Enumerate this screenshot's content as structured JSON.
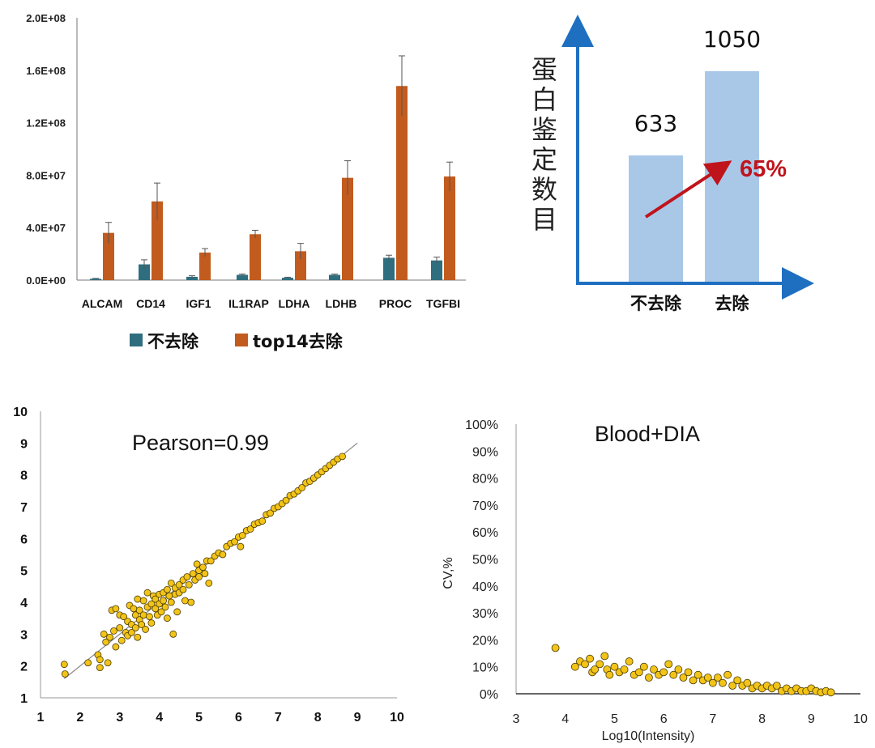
{
  "chart_data": [
    {
      "type": "bar",
      "categories": [
        "ALCAM",
        "CD14",
        "IGF1",
        "IL1RAP",
        "LDHA",
        "LDHB",
        "PROC",
        "TGFBI"
      ],
      "series": [
        {
          "name": "不去除",
          "color": "#2E6E7E",
          "values": [
            1000000.0,
            12000000.0,
            2500000.0,
            4000000.0,
            1800000.0,
            4000000.0,
            17000000.0,
            15000000.0
          ],
          "errors": [
            300000.0,
            3500000.0,
            800000.0,
            600000.0,
            400000.0,
            600000.0,
            2000000.0,
            2500000.0
          ]
        },
        {
          "name": "top14去除",
          "color": "#C25B1E",
          "values": [
            36000000.0,
            60000000.0,
            21000000.0,
            35000000.0,
            22000000.0,
            78000000.0,
            148000000.0,
            79000000.0
          ],
          "errors": [
            8000000.0,
            14000000.0,
            3000000.0,
            3000000.0,
            6000000.0,
            13000000.0,
            23000000.0,
            11000000.0
          ]
        }
      ],
      "ytick_labels": [
        "0.0E+00",
        "4.0E+07",
        "8.0E+07",
        "1.2E+08",
        "1.6E+08",
        "2.0E+08"
      ],
      "ylim": [
        0,
        200000000
      ],
      "legend_position": "bottom"
    },
    {
      "type": "bar",
      "categories": [
        "不去除",
        "去除"
      ],
      "values": [
        633,
        1050
      ],
      "value_labels": [
        "633",
        "1050"
      ],
      "ylabel": "蛋白鉴定数目",
      "annotation": "65%",
      "bar_color": "#A9C8E8",
      "axis_color": "#1F6FC1",
      "arrow_color": "#C0141C"
    },
    {
      "type": "scatter",
      "title": "Pearson=0.99",
      "xlim": [
        1,
        10
      ],
      "ylim": [
        1,
        10
      ],
      "xticks": [
        "1",
        "2",
        "3",
        "4",
        "5",
        "6",
        "7",
        "8",
        "9",
        "10"
      ],
      "yticks": [
        "1",
        "2",
        "3",
        "4",
        "5",
        "6",
        "7",
        "8",
        "9",
        "10"
      ],
      "fit_line": [
        [
          1.6,
          1.6
        ],
        [
          9.0,
          9.0
        ]
      ],
      "point_color": "#F2C418",
      "points": [
        [
          1.6,
          2.05
        ],
        [
          1.62,
          1.75
        ],
        [
          2.2,
          2.1
        ],
        [
          2.45,
          2.35
        ],
        [
          2.5,
          2.2
        ],
        [
          2.5,
          1.95
        ],
        [
          2.7,
          2.1
        ],
        [
          2.6,
          3.0
        ],
        [
          2.65,
          2.75
        ],
        [
          2.75,
          2.9
        ],
        [
          2.85,
          3.1
        ],
        [
          2.9,
          2.6
        ],
        [
          2.8,
          3.75
        ],
        [
          2.9,
          3.8
        ],
        [
          3.0,
          3.6
        ],
        [
          3.0,
          3.2
        ],
        [
          3.05,
          2.8
        ],
        [
          3.1,
          3.55
        ],
        [
          3.15,
          3.05
        ],
        [
          3.2,
          3.4
        ],
        [
          3.2,
          2.95
        ],
        [
          3.25,
          3.9
        ],
        [
          3.3,
          3.3
        ],
        [
          3.3,
          3.05
        ],
        [
          3.35,
          3.8
        ],
        [
          3.4,
          3.6
        ],
        [
          3.4,
          3.2
        ],
        [
          3.45,
          4.1
        ],
        [
          3.45,
          2.9
        ],
        [
          3.5,
          3.45
        ],
        [
          3.5,
          3.75
        ],
        [
          3.55,
          3.3
        ],
        [
          3.6,
          4.05
        ],
        [
          3.6,
          3.6
        ],
        [
          3.65,
          3.15
        ],
        [
          3.7,
          3.85
        ],
        [
          3.7,
          4.3
        ],
        [
          3.75,
          3.55
        ],
        [
          3.8,
          3.95
        ],
        [
          3.8,
          3.35
        ],
        [
          3.85,
          4.2
        ],
        [
          3.9,
          3.8
        ],
        [
          3.9,
          4.1
        ],
        [
          3.95,
          3.6
        ],
        [
          4.0,
          4.25
        ],
        [
          4.0,
          3.95
        ],
        [
          4.05,
          3.7
        ],
        [
          4.1,
          4.3
        ],
        [
          4.1,
          4.05
        ],
        [
          4.15,
          3.85
        ],
        [
          4.2,
          4.4
        ],
        [
          4.2,
          3.5
        ],
        [
          4.25,
          4.2
        ],
        [
          4.3,
          4.6
        ],
        [
          4.3,
          4.0
        ],
        [
          4.35,
          3.0
        ],
        [
          4.4,
          4.45
        ],
        [
          4.4,
          4.25
        ],
        [
          4.45,
          3.7
        ],
        [
          4.5,
          4.55
        ],
        [
          4.5,
          4.3
        ],
        [
          4.6,
          4.7
        ],
        [
          4.6,
          4.4
        ],
        [
          4.65,
          4.05
        ],
        [
          4.7,
          4.8
        ],
        [
          4.75,
          4.55
        ],
        [
          4.8,
          4.0
        ],
        [
          4.85,
          4.9
        ],
        [
          4.9,
          4.7
        ],
        [
          4.95,
          5.2
        ],
        [
          5.0,
          5.0
        ],
        [
          5.0,
          4.8
        ],
        [
          5.1,
          5.1
        ],
        [
          5.15,
          4.9
        ],
        [
          5.2,
          5.3
        ],
        [
          5.25,
          4.6
        ],
        [
          5.3,
          5.3
        ],
        [
          5.4,
          5.45
        ],
        [
          5.5,
          5.55
        ],
        [
          5.6,
          5.5
        ],
        [
          5.7,
          5.75
        ],
        [
          5.8,
          5.85
        ],
        [
          5.9,
          5.9
        ],
        [
          6.0,
          6.05
        ],
        [
          6.05,
          5.75
        ],
        [
          6.1,
          6.1
        ],
        [
          6.2,
          6.25
        ],
        [
          6.3,
          6.3
        ],
        [
          6.4,
          6.45
        ],
        [
          6.5,
          6.5
        ],
        [
          6.6,
          6.55
        ],
        [
          6.7,
          6.75
        ],
        [
          6.8,
          6.8
        ],
        [
          6.9,
          6.95
        ],
        [
          7.0,
          7.0
        ],
        [
          7.1,
          7.1
        ],
        [
          7.2,
          7.2
        ],
        [
          7.3,
          7.35
        ],
        [
          7.4,
          7.4
        ],
        [
          7.5,
          7.5
        ],
        [
          7.6,
          7.6
        ],
        [
          7.7,
          7.75
        ],
        [
          7.8,
          7.8
        ],
        [
          7.9,
          7.9
        ],
        [
          8.0,
          8.0
        ],
        [
          8.1,
          8.1
        ],
        [
          8.2,
          8.2
        ],
        [
          8.3,
          8.3
        ],
        [
          8.4,
          8.4
        ],
        [
          8.5,
          8.5
        ],
        [
          8.62,
          8.58
        ]
      ]
    },
    {
      "type": "scatter",
      "title": "Blood+DIA",
      "xlabel": "Log10(Intensity)",
      "ylabel": "CV,%",
      "xlim": [
        3,
        10
      ],
      "ylim": [
        0,
        100
      ],
      "xticks": [
        "3",
        "4",
        "5",
        "6",
        "7",
        "8",
        "9",
        "10"
      ],
      "yticks": [
        "0%",
        "10%",
        "20%",
        "30%",
        "40%",
        "50%",
        "60%",
        "70%",
        "80%",
        "90%",
        "100%"
      ],
      "point_color": "#F2C418",
      "points": [
        [
          3.8,
          17
        ],
        [
          4.2,
          10
        ],
        [
          4.3,
          12
        ],
        [
          4.4,
          11
        ],
        [
          4.5,
          13
        ],
        [
          4.55,
          8
        ],
        [
          4.6,
          9
        ],
        [
          4.7,
          11
        ],
        [
          4.8,
          14
        ],
        [
          4.85,
          9
        ],
        [
          4.9,
          7
        ],
        [
          5.0,
          10
        ],
        [
          5.1,
          8
        ],
        [
          5.2,
          9
        ],
        [
          5.3,
          12
        ],
        [
          5.4,
          7
        ],
        [
          5.5,
          8
        ],
        [
          5.6,
          10
        ],
        [
          5.7,
          6
        ],
        [
          5.8,
          9
        ],
        [
          5.9,
          7
        ],
        [
          6.0,
          8
        ],
        [
          6.1,
          11
        ],
        [
          6.2,
          7
        ],
        [
          6.3,
          9
        ],
        [
          6.4,
          6
        ],
        [
          6.5,
          8
        ],
        [
          6.6,
          5
        ],
        [
          6.7,
          7
        ],
        [
          6.8,
          5
        ],
        [
          6.9,
          6
        ],
        [
          7.0,
          4
        ],
        [
          7.1,
          6
        ],
        [
          7.2,
          4
        ],
        [
          7.3,
          7
        ],
        [
          7.4,
          3
        ],
        [
          7.5,
          5
        ],
        [
          7.6,
          3
        ],
        [
          7.7,
          4
        ],
        [
          7.8,
          2
        ],
        [
          7.9,
          3
        ],
        [
          8.0,
          2
        ],
        [
          8.1,
          3
        ],
        [
          8.2,
          2
        ],
        [
          8.3,
          3
        ],
        [
          8.4,
          1
        ],
        [
          8.5,
          2
        ],
        [
          8.6,
          1
        ],
        [
          8.7,
          2
        ],
        [
          8.8,
          1
        ],
        [
          8.9,
          1
        ],
        [
          9.0,
          2
        ],
        [
          9.1,
          1
        ],
        [
          9.2,
          0.5
        ],
        [
          9.3,
          1
        ],
        [
          9.4,
          0.5
        ]
      ]
    }
  ]
}
